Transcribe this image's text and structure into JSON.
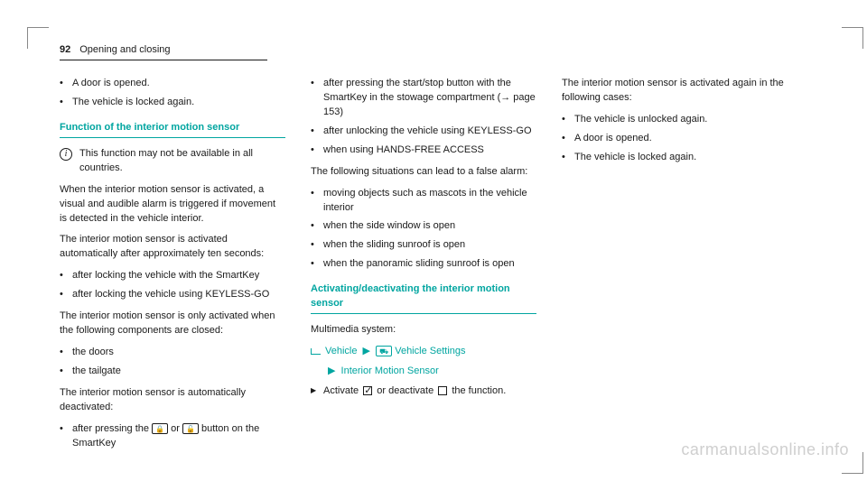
{
  "header": {
    "page_num": "92",
    "section": "Opening and closing"
  },
  "col1": {
    "bullets_top": [
      "A door is opened.",
      "The vehicle is locked again."
    ],
    "heading": "Function of the interior motion sensor",
    "info_text": "This function may not be available in all countries.",
    "p1": "When the interior motion sensor is activated, a visual and audible alarm is triggered if movement is detected in the vehicle interior.",
    "p2": "The interior motion sensor is activated automatically after approximately ten seconds:",
    "bullets_activate": [
      "after locking the vehicle with the SmartKey",
      "after locking the vehicle using KEYLESS-GO"
    ],
    "p3": "The interior motion sensor is only activated when the following components are closed:",
    "bullets_components": [
      "the doors",
      "the tailgate"
    ],
    "p4": "The interior motion sensor is automatically deactivated:",
    "deact_pre": "after pressing the ",
    "deact_mid": " or ",
    "deact_post": " button on the SmartKey"
  },
  "col2": {
    "bullets_top": [
      "after pressing the start/stop button with the SmartKey in the stowage compartment (→ page 153)",
      "after unlocking the vehicle using KEYLESS-GO",
      "when using HANDS-FREE ACCESS"
    ],
    "p1": "The following situations can lead to a false alarm:",
    "bullets_false": [
      "moving objects such as mascots in the vehicle interior",
      "when the side window is open",
      "when the sliding sunroof is open",
      "when the panoramic sliding sunroof is open"
    ],
    "heading": "Activating/deactivating the interior motion sensor",
    "mm_label": "Multimedia system:",
    "nav1a": "Vehicle",
    "nav1b": "Vehicle Settings",
    "nav2": "Interior Motion Sensor",
    "action_pre": "Activate ",
    "action_mid": " or deactivate ",
    "action_post": " the function."
  },
  "col3": {
    "p1": "The interior motion sensor is activated again in the following cases:",
    "bullets": [
      "The vehicle is unlocked again.",
      "A door is opened.",
      "The vehicle is locked again."
    ]
  },
  "watermark": "carmanualsonline.info"
}
